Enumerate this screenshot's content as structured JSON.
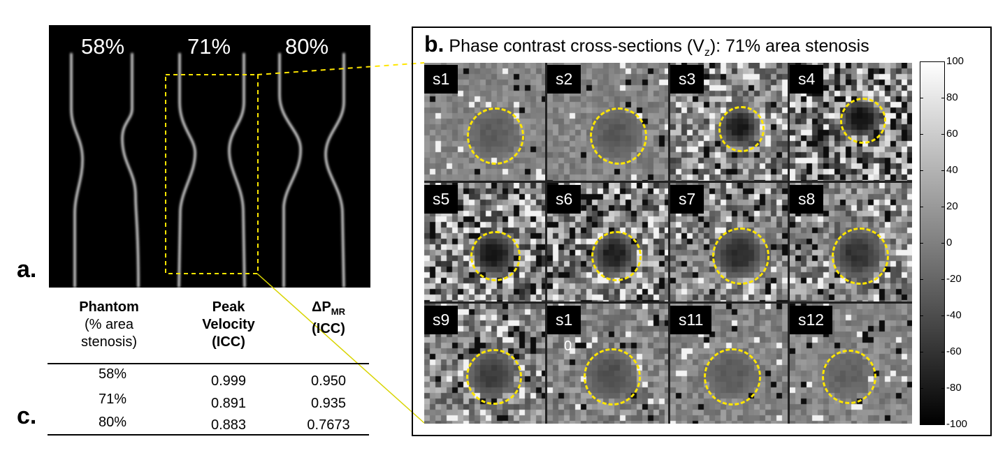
{
  "panel_a": {
    "letter": "a.",
    "phantoms": [
      "58%",
      "71%",
      "80%"
    ]
  },
  "panel_b": {
    "letter": "b.",
    "title_pre": "Phase contrast cross-sections (V",
    "title_sub": "z",
    "title_post": "): 71% area stenosis",
    "slices": [
      "s1",
      "s2",
      "s3",
      "s4",
      "s5",
      "s6",
      "s7",
      "s8",
      "s9",
      "s1",
      "s11",
      "s12"
    ],
    "slice10_second_line": "0",
    "colorbar": {
      "colors": {
        "top": "#ffffff",
        "bottom": "#000000"
      },
      "labels": [
        "100",
        "80",
        "60",
        "40",
        "20",
        "0",
        "-20",
        "-40",
        "-60",
        "-80",
        "-100"
      ],
      "values": [
        100,
        80,
        60,
        40,
        20,
        0,
        -20,
        -40,
        -60,
        -80,
        -100
      ]
    },
    "roi_color": "#ffe600"
  },
  "panel_c": {
    "letter": "c.",
    "headers": {
      "phantom_line1": "Phantom",
      "phantom_line2": "(% area",
      "phantom_line3": "stenosis)",
      "peak_line1": "Peak",
      "peak_line2": "Velocity",
      "peak_line3": "(ICC)",
      "dp_line1_pre": "ΔP",
      "dp_line1_sub": "MR",
      "dp_line2": "(ICC)"
    },
    "rows": [
      {
        "phantom": "58%",
        "peak": "0.999",
        "dp": "0.950"
      },
      {
        "phantom": "71%",
        "peak": "0.891",
        "dp": "0.935"
      },
      {
        "phantom": "80%",
        "peak": "0.883",
        "dp": "0.7673"
      }
    ]
  }
}
